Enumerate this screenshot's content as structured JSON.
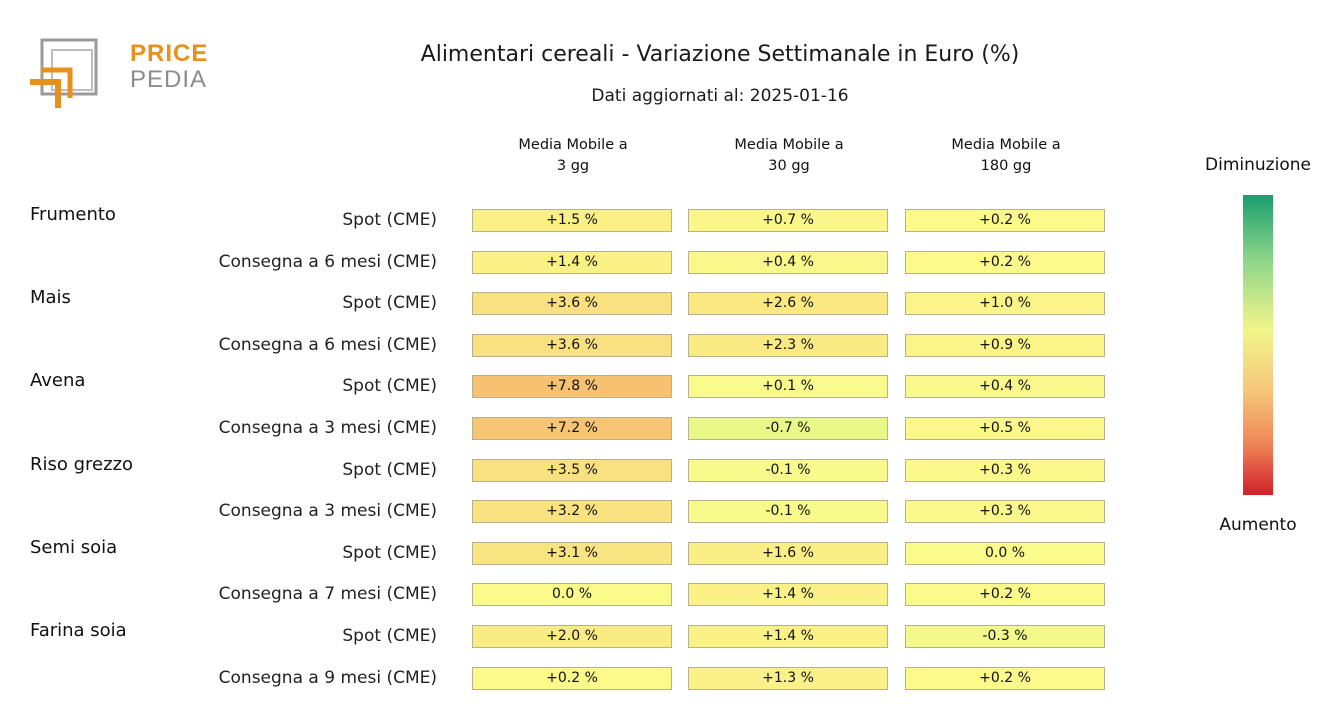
{
  "logo": {
    "line1": "PRICE",
    "line2": "PEDIA",
    "orange": "#e8901c",
    "gray": "#9a9a9a"
  },
  "title": "Alimentari cereali - Variazione Settimanale in Euro (%)",
  "subtitle": "Dati aggiornati al: 2025-01-16",
  "legend": {
    "top": "Diminuzione",
    "bottom": "Aumento"
  },
  "chart_data": {
    "type": "heatmap",
    "title": "Alimentari cereali - Variazione Settimanale in Euro (%)",
    "subtitle": "Dati aggiornati al: 2025-01-16",
    "columns": [
      {
        "line1": "Media Mobile a",
        "line2": "3 gg"
      },
      {
        "line1": "Media Mobile a",
        "line2": "30 gg"
      },
      {
        "line1": "Media Mobile a",
        "line2": "180 gg"
      }
    ],
    "rows": [
      {
        "group": "Frumento",
        "label": "Spot (CME)",
        "values": [
          1.5,
          0.7,
          0.2
        ],
        "texts": [
          "+1.5 %",
          "+0.7 %",
          "+0.2 %"
        ]
      },
      {
        "group": "",
        "label": "Consegna a 6 mesi (CME)",
        "values": [
          1.4,
          0.4,
          0.2
        ],
        "texts": [
          "+1.4 %",
          "+0.4 %",
          "+0.2 %"
        ]
      },
      {
        "group": "Mais",
        "label": "Spot (CME)",
        "values": [
          3.6,
          2.6,
          1.0
        ],
        "texts": [
          "+3.6 %",
          "+2.6 %",
          "+1.0 %"
        ]
      },
      {
        "group": "",
        "label": "Consegna a 6 mesi (CME)",
        "values": [
          3.6,
          2.3,
          0.9
        ],
        "texts": [
          "+3.6 %",
          "+2.3 %",
          "+0.9 %"
        ]
      },
      {
        "group": "Avena",
        "label": "Spot (CME)",
        "values": [
          7.8,
          0.1,
          0.4
        ],
        "texts": [
          "+7.8 %",
          "+0.1 %",
          "+0.4 %"
        ]
      },
      {
        "group": "",
        "label": "Consegna a 3 mesi (CME)",
        "values": [
          7.2,
          -0.7,
          0.5
        ],
        "texts": [
          "+7.2 %",
          "-0.7 %",
          "+0.5 %"
        ]
      },
      {
        "group": "Riso grezzo",
        "label": "Spot (CME)",
        "values": [
          3.5,
          -0.1,
          0.3
        ],
        "texts": [
          "+3.5 %",
          "-0.1 %",
          "+0.3 %"
        ]
      },
      {
        "group": "",
        "label": "Consegna a 3 mesi (CME)",
        "values": [
          3.2,
          -0.1,
          0.3
        ],
        "texts": [
          "+3.2 %",
          "-0.1 %",
          "+0.3 %"
        ]
      },
      {
        "group": "Semi soia",
        "label": "Spot (CME)",
        "values": [
          3.1,
          1.6,
          0.0
        ],
        "texts": [
          "+3.1 %",
          "+1.6 %",
          "0.0 %"
        ]
      },
      {
        "group": "",
        "label": "Consegna a 7 mesi (CME)",
        "values": [
          0.0,
          1.4,
          0.2
        ],
        "texts": [
          "0.0 %",
          "+1.4 %",
          "+0.2 %"
        ]
      },
      {
        "group": "Farina soia",
        "label": "Spot (CME)",
        "values": [
          2.0,
          1.4,
          -0.3
        ],
        "texts": [
          "+2.0 %",
          "+1.4 %",
          "-0.3 %"
        ]
      },
      {
        "group": "",
        "label": "Consegna a 9 mesi (CME)",
        "values": [
          0.2,
          1.3,
          0.2
        ],
        "texts": [
          "+0.2 %",
          "+1.3 %",
          "+0.2 %"
        ]
      }
    ],
    "colors": {
      "decrease": "#1a9e6e",
      "neutral": "#fbfb8c",
      "increase": "#d2202a"
    }
  }
}
